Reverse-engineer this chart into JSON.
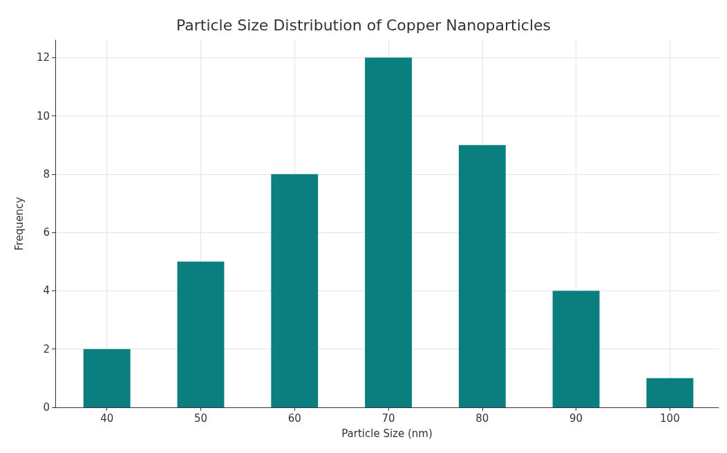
{
  "chart_data": {
    "type": "bar",
    "title": "Particle Size Distribution of Copper Nanoparticles",
    "xlabel": "Particle Size (nm)",
    "ylabel": "Frequency",
    "x": [
      40,
      50,
      60,
      70,
      80,
      90,
      100
    ],
    "values": [
      2,
      5,
      8,
      12,
      9,
      4,
      1
    ],
    "color": "#0b7f7f",
    "xlim": [
      34.5,
      105.2
    ],
    "xticks": [
      40,
      50,
      60,
      70,
      80,
      90,
      100
    ],
    "ylim": [
      0,
      12.6
    ],
    "yticks": [
      0,
      2,
      4,
      6,
      8,
      10,
      12
    ],
    "grid": true
  }
}
